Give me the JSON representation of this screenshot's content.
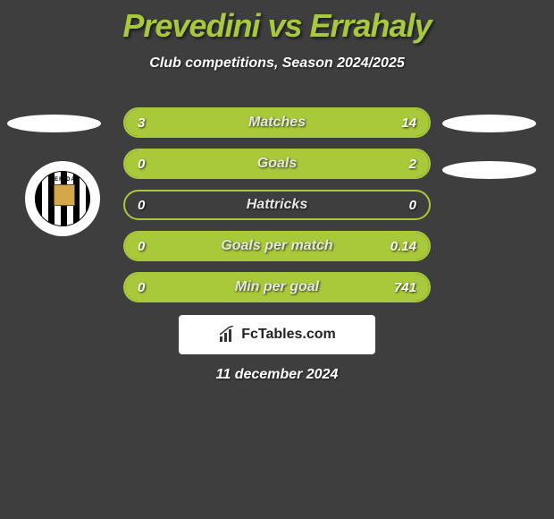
{
  "title": "Prevedini vs Errahaly",
  "subtitle": "Club competitions, Season 2024/2025",
  "date": "11 december 2024",
  "branding_prefix": "Fc",
  "branding_suffix": "Tables.com",
  "colors": {
    "background": "#3e3e3e",
    "accent": "#a8c93a",
    "white": "#ffffff",
    "text": "#e6e6e6"
  },
  "rows": [
    {
      "label": "Matches",
      "left": "3",
      "right": "14",
      "left_pct": 17,
      "right_pct": 83
    },
    {
      "label": "Goals",
      "left": "0",
      "right": "2",
      "left_pct": 0,
      "right_pct": 100
    },
    {
      "label": "Hattricks",
      "left": "0",
      "right": "0",
      "left_pct": 0,
      "right_pct": 0
    },
    {
      "label": "Goals per match",
      "left": "0",
      "right": "0.14",
      "left_pct": 0,
      "right_pct": 100
    },
    {
      "label": "Min per goal",
      "left": "0",
      "right": "741",
      "left_pct": 0,
      "right_pct": 100
    }
  ],
  "badge_text": "MERIDA"
}
